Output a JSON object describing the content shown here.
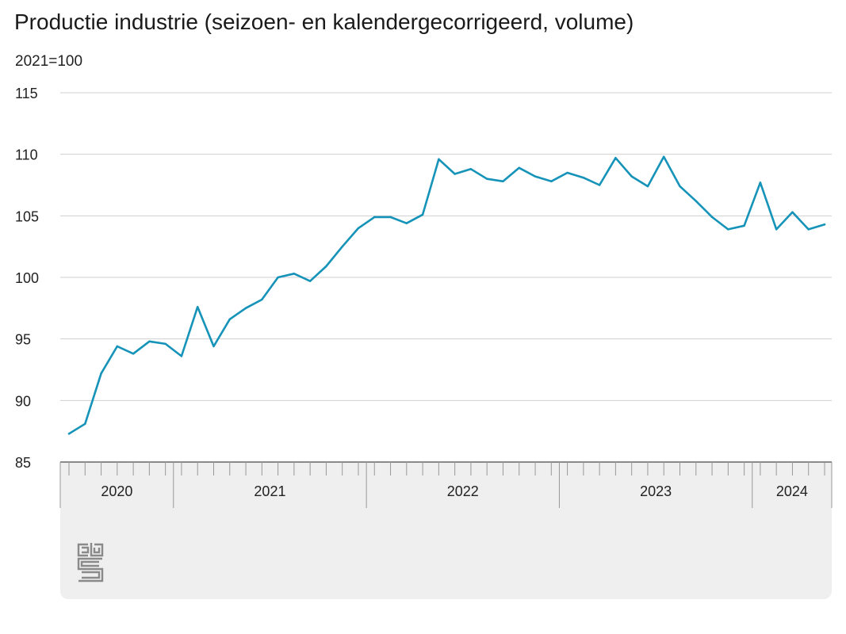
{
  "title": "Productie industrie (seizoen- en kalendergecorrigeerd, volume)",
  "unit_label": "2021=100",
  "colors": {
    "line": "#1593b8",
    "grid": "#cfcfcf",
    "axis": "#999999",
    "panel": "#efefef"
  },
  "logo": {
    "name": "cbs-logo",
    "text": "cbs"
  },
  "chart_data": {
    "type": "line",
    "ylabel": "2021=100",
    "ylim": [
      85,
      115
    ],
    "yticks": [
      85,
      90,
      95,
      100,
      105,
      110,
      115
    ],
    "grid": true,
    "legend": "none",
    "x_start": "2020-01",
    "year_labels": [
      {
        "label": "2020",
        "start": 0,
        "end": 7
      },
      {
        "label": "2021",
        "start": 7,
        "end": 19
      },
      {
        "label": "2022",
        "start": 19,
        "end": 31
      },
      {
        "label": "2023",
        "start": 31,
        "end": 43
      },
      {
        "label": "2024",
        "start": 43,
        "end": 47
      }
    ],
    "series": [
      {
        "values": [
          87.3,
          88.1,
          92.2,
          94.4,
          93.8,
          94.8,
          94.6,
          93.6,
          97.6,
          94.4,
          96.6,
          97.5,
          98.2,
          100.0,
          100.3,
          99.7,
          100.9,
          102.5,
          104.0,
          104.9,
          104.9,
          104.4,
          105.1,
          109.6,
          108.4,
          108.8,
          108.0,
          107.8,
          108.9,
          108.2,
          107.8,
          108.5,
          108.1,
          107.5,
          109.7,
          108.2,
          107.4,
          109.8,
          107.4,
          106.2,
          104.9,
          103.9,
          104.2,
          107.7,
          103.9,
          105.3,
          103.9,
          104.3
        ]
      }
    ]
  }
}
